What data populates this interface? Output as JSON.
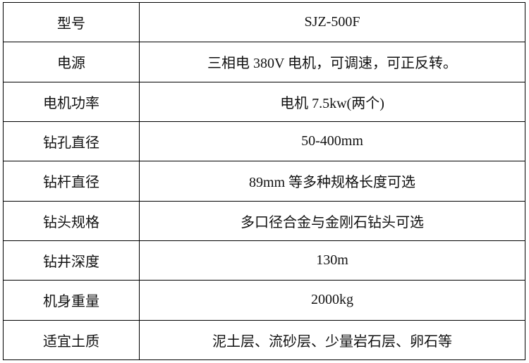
{
  "table": {
    "rows": [
      [
        "型号",
        "SJZ-500F"
      ],
      [
        "电源",
        "三相电 380V 电机，可调速，可正反转。"
      ],
      [
        "电机功率",
        "电机 7.5kw(两个)"
      ],
      [
        "钻孔直径",
        "50-400mm"
      ],
      [
        "钻杆直径",
        "89mm 等多种规格长度可选"
      ],
      [
        "钻头规格",
        "多口径合金与金刚石钻头可选"
      ],
      [
        "钻井深度",
        "130m"
      ],
      [
        "机身重量",
        "2000kg"
      ],
      [
        "适宜土质",
        "泥土层、流砂层、少量岩石层、卵石等"
      ]
    ]
  }
}
